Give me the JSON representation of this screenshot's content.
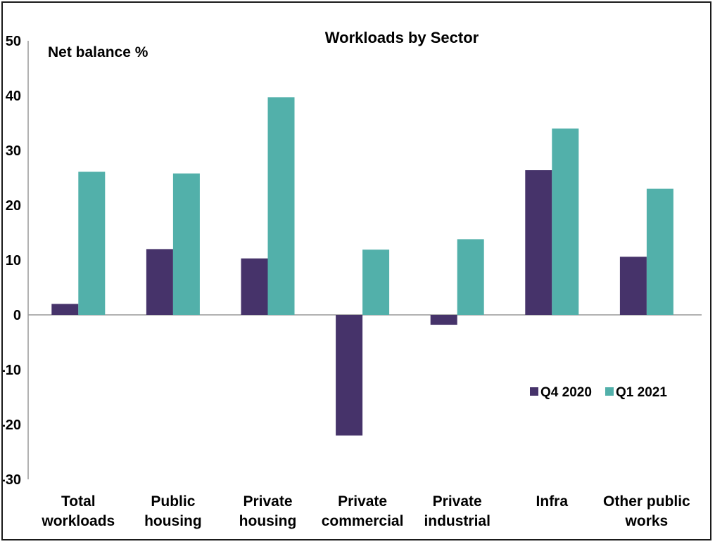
{
  "chart_data": {
    "type": "bar",
    "title": "Workloads by Sector",
    "ylabel": "Net balance %",
    "xlabel": "",
    "ylim": [
      -30,
      50
    ],
    "yticks": [
      50,
      40,
      30,
      20,
      10,
      0,
      -10,
      -20,
      -30
    ],
    "categories": [
      [
        "Total",
        "workloads"
      ],
      [
        "Public",
        "housing"
      ],
      [
        "Private",
        "housing"
      ],
      [
        "Private",
        "commercial"
      ],
      [
        "Private",
        "industrial"
      ],
      [
        "Infra"
      ],
      [
        "Other public",
        "works"
      ]
    ],
    "series": [
      {
        "name": "Q4 2020",
        "color": "#46336a",
        "values": [
          2,
          12,
          10.3,
          -22,
          -1.8,
          26.4,
          10.6
        ]
      },
      {
        "name": "Q1 2021",
        "color": "#52b0aa",
        "values": [
          26.1,
          25.8,
          39.7,
          11.9,
          13.8,
          34,
          23
        ]
      }
    ],
    "grid": false,
    "legend_position": "right-middle"
  }
}
